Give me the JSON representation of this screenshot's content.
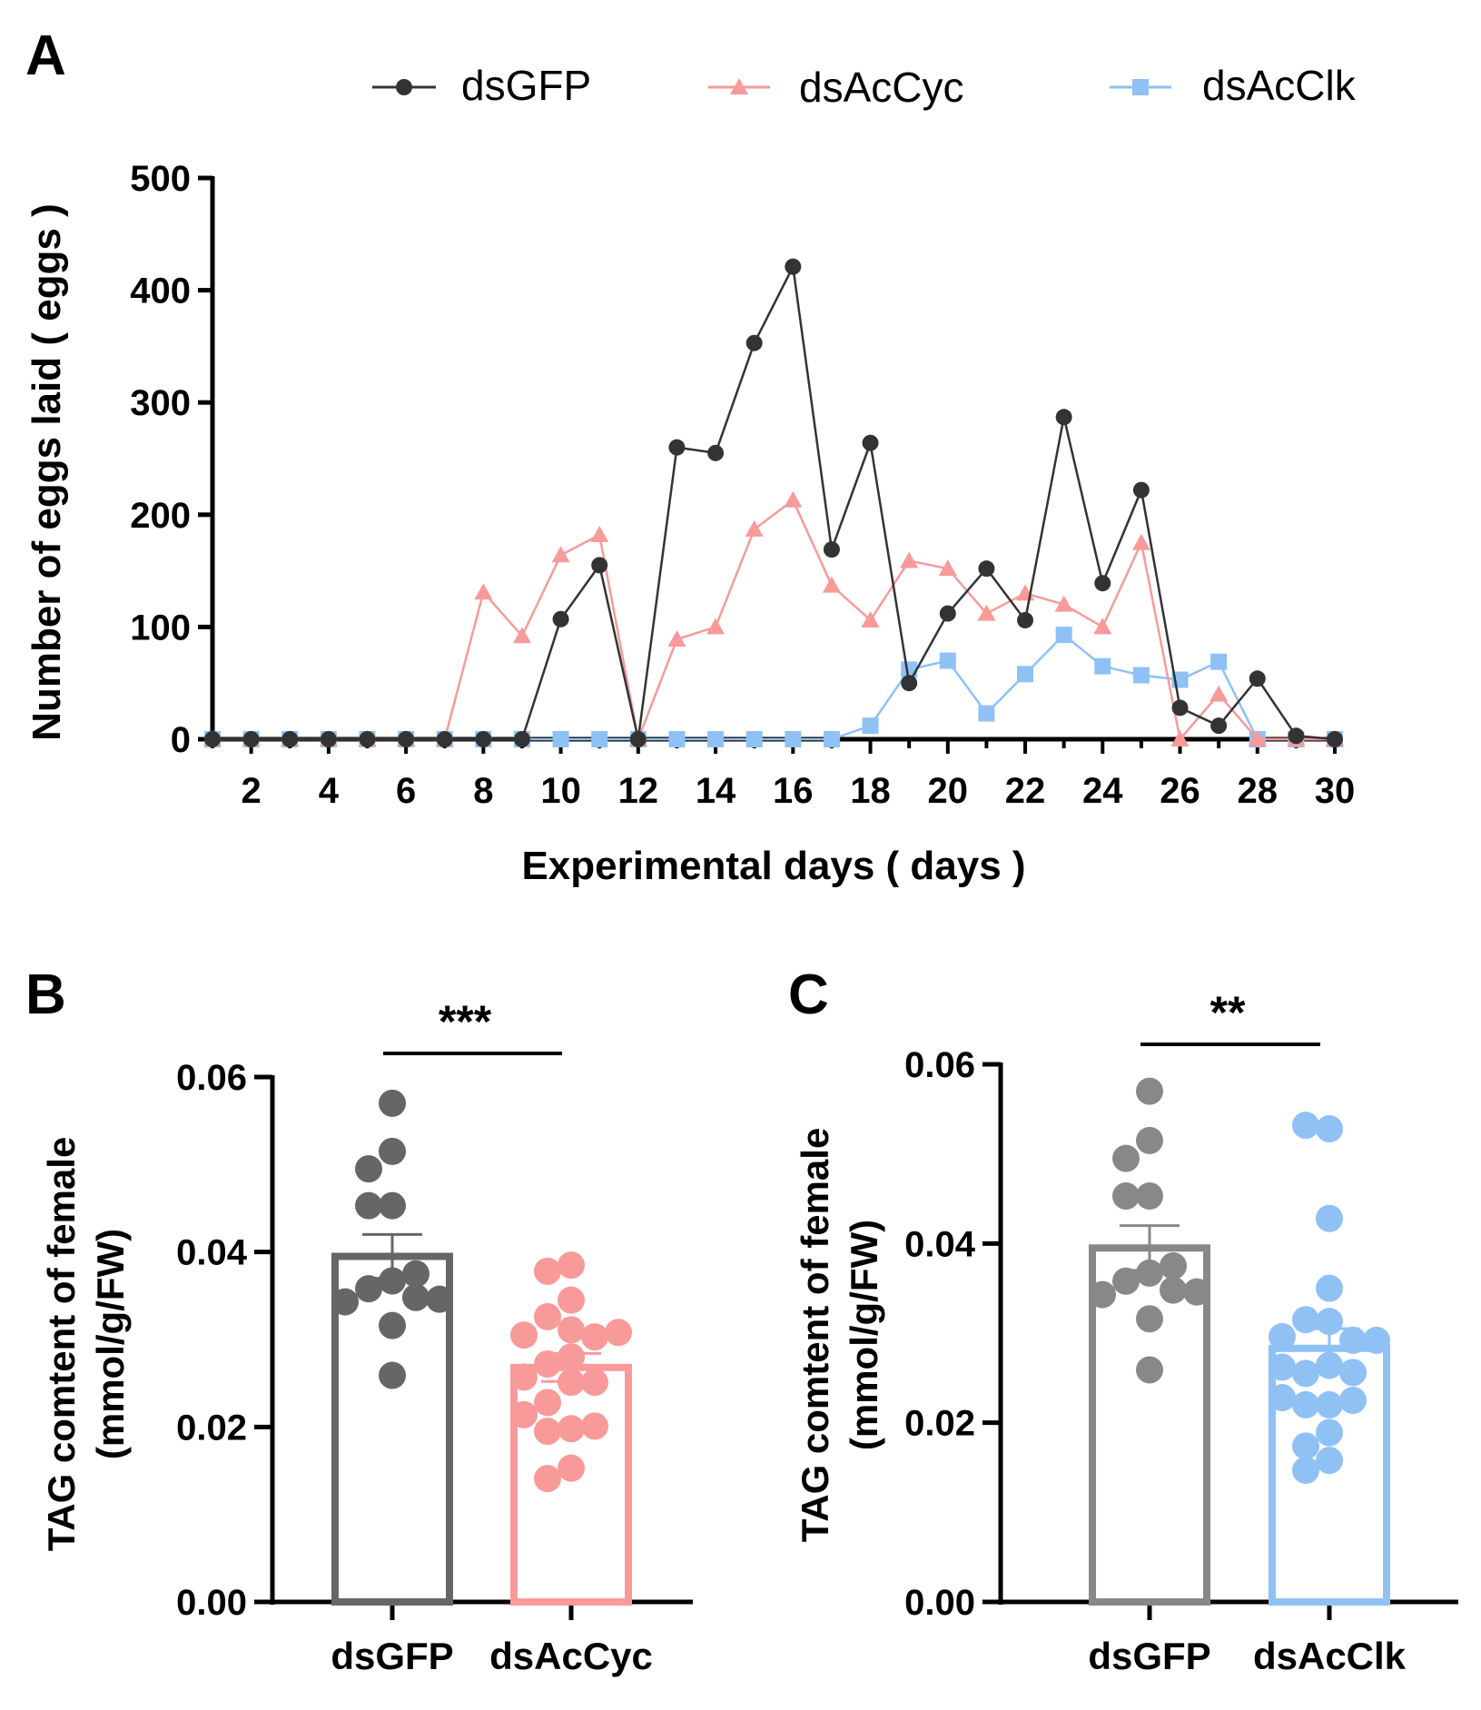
{
  "chart_data": [
    {
      "panel": "A",
      "type": "line",
      "title": "",
      "xlabel": "Experimental days ( days )",
      "ylabel": "Number of eggs laid ( eggs )",
      "ylim": [
        0,
        500
      ],
      "yticks": [
        "0",
        "100",
        "200",
        "300",
        "400",
        "500"
      ],
      "xlim": [
        1,
        30
      ],
      "xticks": [
        "2",
        "4",
        "6",
        "8",
        "10",
        "12",
        "14",
        "16",
        "18",
        "20",
        "22",
        "24",
        "26",
        "28",
        "30"
      ],
      "legend_position": "top",
      "x": [
        1,
        2,
        3,
        4,
        5,
        6,
        7,
        8,
        9,
        10,
        11,
        12,
        13,
        14,
        15,
        16,
        17,
        18,
        19,
        20,
        21,
        22,
        23,
        24,
        25,
        26,
        27,
        28,
        29,
        30
      ],
      "series": [
        {
          "name": "dsGFP",
          "color": "#333333",
          "marker": "circle",
          "values": [
            0,
            0,
            0,
            0,
            0,
            0,
            0,
            0,
            0,
            107,
            155,
            0,
            260,
            255,
            353,
            421,
            169,
            264,
            50,
            112,
            152,
            106,
            287,
            139,
            222,
            28,
            12,
            54,
            3,
            0
          ]
        },
        {
          "name": "dsAcCyc",
          "color": "#f89a9a",
          "marker": "triangle",
          "values": [
            0,
            0,
            0,
            0,
            0,
            0,
            0,
            131,
            92,
            164,
            182,
            0,
            89,
            100,
            187,
            213,
            137,
            106,
            159,
            152,
            112,
            130,
            120,
            100,
            175,
            0,
            40,
            0,
            0,
            0
          ]
        },
        {
          "name": "dsAcClk",
          "color": "#8fc1f5",
          "marker": "square",
          "values": [
            0,
            0,
            0,
            0,
            0,
            0,
            0,
            0,
            0,
            0,
            0,
            0,
            0,
            0,
            0,
            0,
            0,
            12,
            62,
            70,
            23,
            58,
            93,
            65,
            57,
            53,
            69,
            0,
            0,
            0
          ]
        }
      ]
    },
    {
      "panel": "B",
      "type": "bar",
      "ylabel_line1": "TAG comtent of female",
      "ylabel_line2": "(mmol/g/FW)",
      "ylim": [
        0,
        0.06
      ],
      "yticks": [
        "0.00",
        "0.02",
        "0.04",
        "0.06"
      ],
      "categories": [
        "dsGFP",
        "dsAcCyc"
      ],
      "significance": "***",
      "groups": [
        {
          "name": "dsGFP",
          "color": "#666666",
          "mean": 0.0395,
          "sem": 0.0025,
          "points": [
            0.057,
            0.0515,
            0.0495,
            0.0453,
            0.0453,
            0.0367,
            0.0358,
            0.0375,
            0.0348,
            0.0343,
            0.0346,
            0.0316,
            0.0259
          ]
        },
        {
          "name": "dsAcCyc",
          "color": "#f89a9a",
          "mean": 0.0268,
          "sem": 0.0016,
          "points": [
            0.0385,
            0.0378,
            0.0345,
            0.0326,
            0.0311,
            0.0303,
            0.0305,
            0.0308,
            0.028,
            0.0272,
            0.0251,
            0.0251,
            0.0257,
            0.0228,
            0.0198,
            0.0195,
            0.0201,
            0.0214,
            0.0153,
            0.0141
          ]
        }
      ]
    },
    {
      "panel": "C",
      "type": "bar",
      "ylabel_line1": "TAG comtent of female",
      "ylabel_line2": "(mmol/g/FW)",
      "ylim": [
        0,
        0.06
      ],
      "yticks": [
        "0.00",
        "0.02",
        "0.04",
        "0.06"
      ],
      "categories": [
        "dsGFP",
        "dsAcClk"
      ],
      "significance": "**",
      "groups": [
        {
          "name": "dsGFP",
          "color": "#888888",
          "mean": 0.0395,
          "sem": 0.0025,
          "points": [
            0.057,
            0.0515,
            0.0495,
            0.0453,
            0.0453,
            0.0367,
            0.0358,
            0.0375,
            0.0348,
            0.0343,
            0.0346,
            0.0316,
            0.0259
          ]
        },
        {
          "name": "dsAcClk",
          "color": "#8fc1f5",
          "mean": 0.0283,
          "sem": 0.0022,
          "points": [
            0.0528,
            0.0532,
            0.0428,
            0.035,
            0.0313,
            0.0315,
            0.0292,
            0.0296,
            0.0292,
            0.0264,
            0.0255,
            0.0256,
            0.0262,
            0.022,
            0.022,
            0.0225,
            0.0228,
            0.0189,
            0.0174,
            0.0158,
            0.0147
          ]
        }
      ]
    }
  ],
  "panel_labels": [
    "A",
    "B",
    "C"
  ]
}
